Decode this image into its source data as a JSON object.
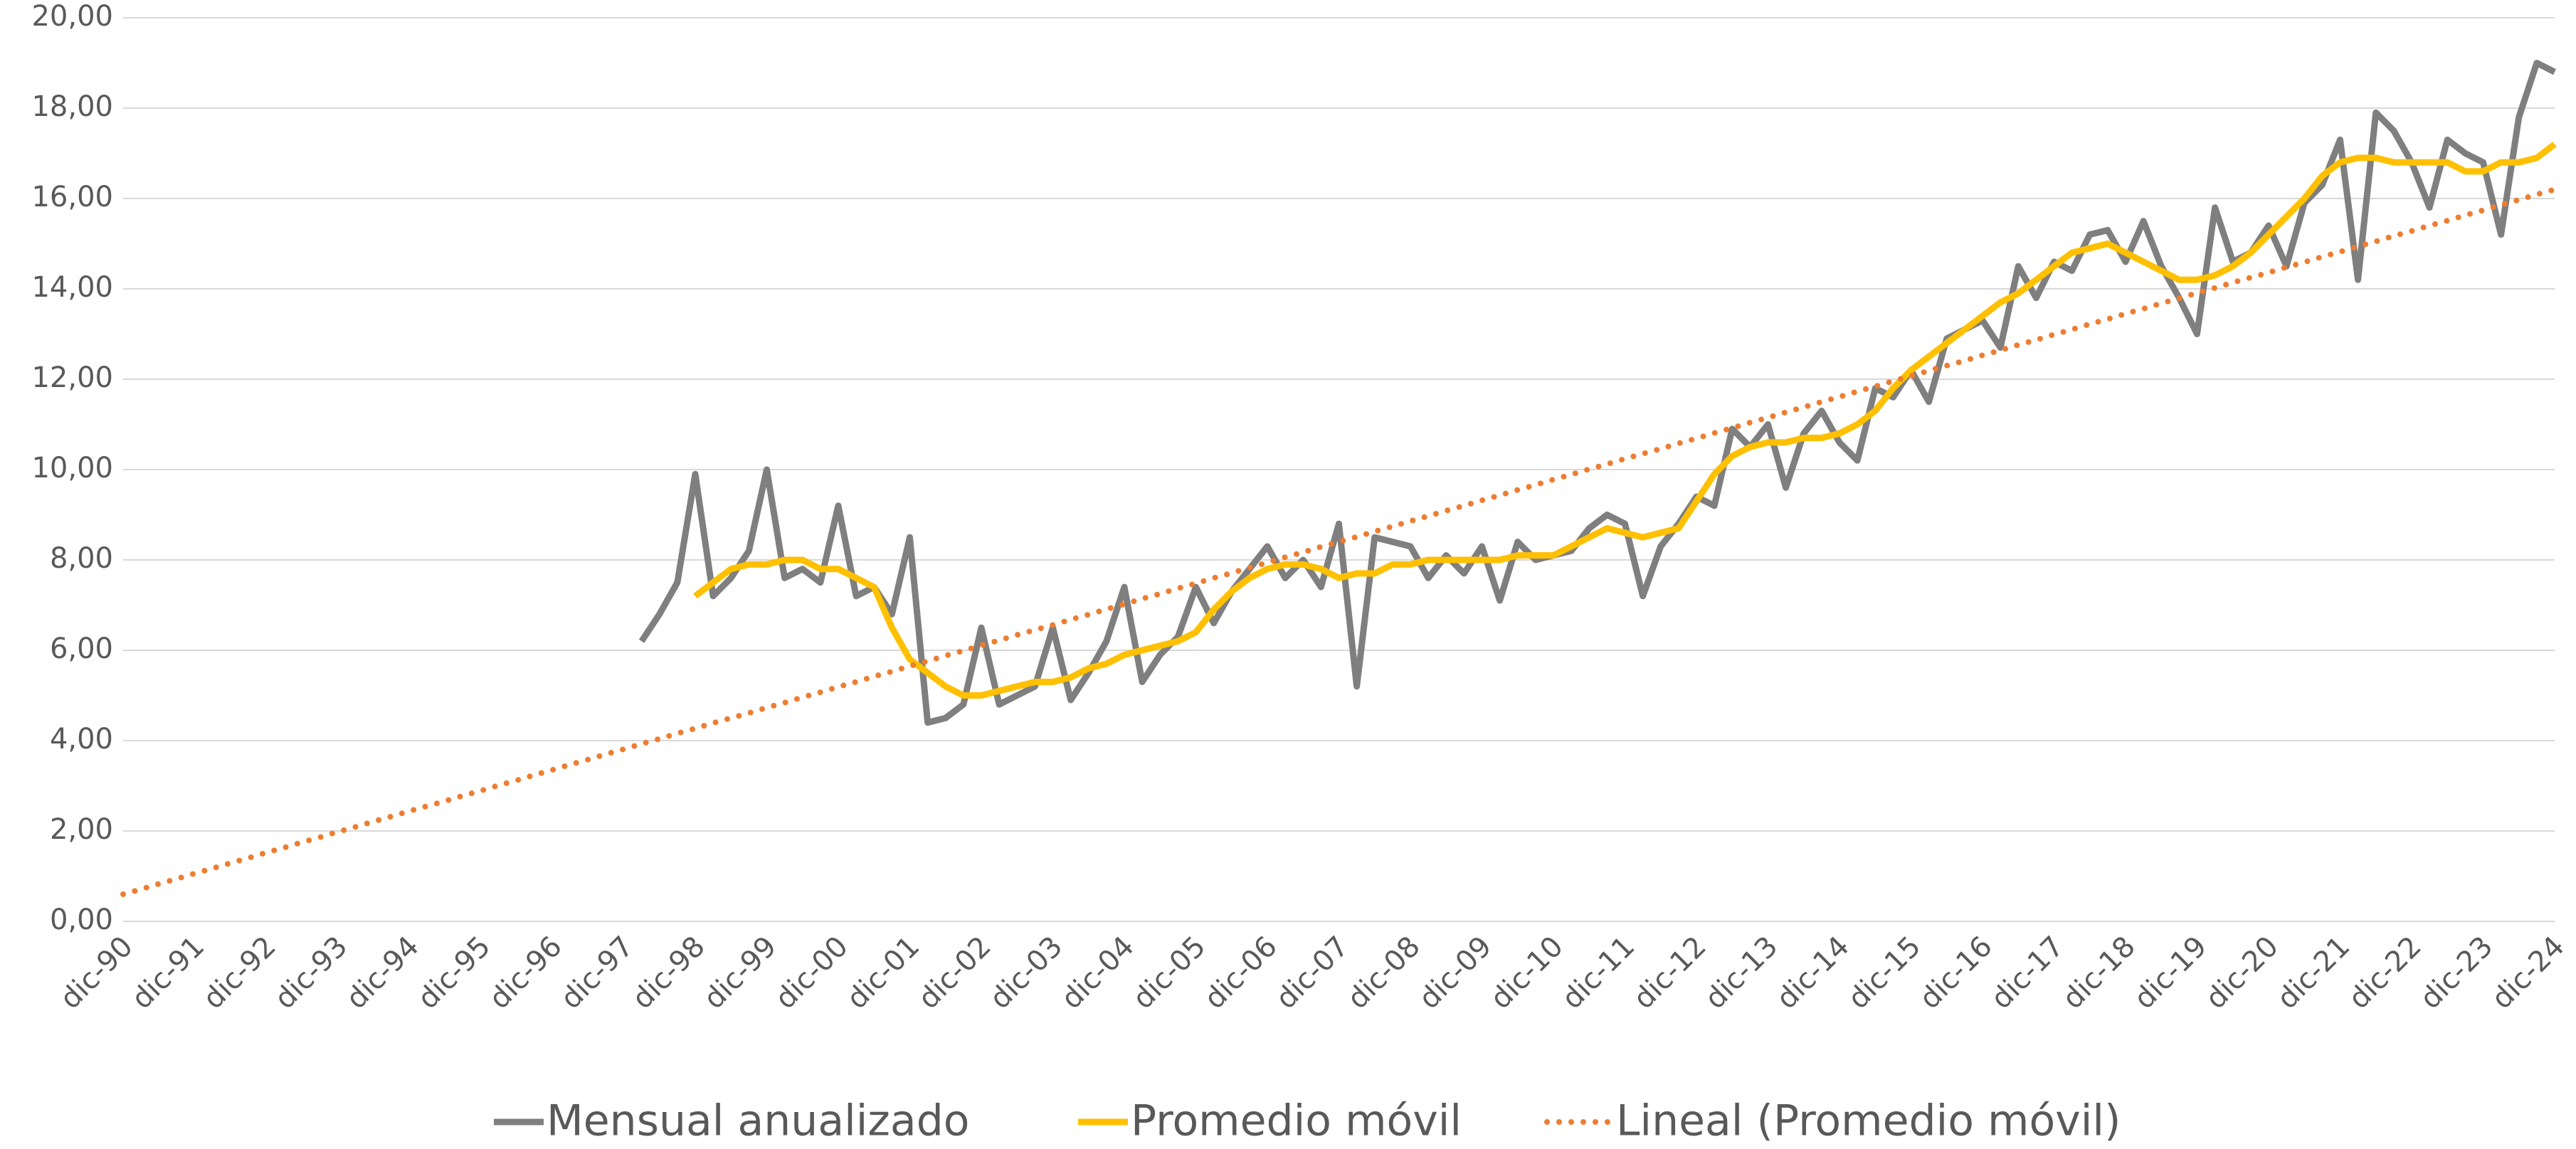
{
  "chart_data": {
    "type": "line",
    "categories": [
      "dic-90",
      null,
      null,
      null,
      "dic-91",
      null,
      null,
      null,
      "dic-92",
      null,
      null,
      null,
      "dic-93",
      null,
      null,
      null,
      "dic-94",
      null,
      null,
      null,
      "dic-95",
      null,
      null,
      null,
      "dic-96",
      null,
      null,
      null,
      "dic-97",
      null,
      null,
      null,
      "dic-98",
      null,
      null,
      null,
      "dic-99",
      null,
      null,
      null,
      "dic-00",
      null,
      null,
      null,
      "dic-01",
      null,
      null,
      null,
      "dic-02",
      null,
      null,
      null,
      "dic-03",
      null,
      null,
      null,
      "dic-04",
      null,
      null,
      null,
      "dic-05",
      null,
      null,
      null,
      "dic-06",
      null,
      null,
      null,
      "dic-07",
      null,
      null,
      null,
      "dic-08",
      null,
      null,
      null,
      "dic-09",
      null,
      null,
      null,
      "dic-10",
      null,
      null,
      null,
      "dic-11",
      null,
      null,
      null,
      "dic-12",
      null,
      null,
      null,
      "dic-13",
      null,
      null,
      null,
      "dic-14",
      null,
      null,
      null,
      "dic-15",
      null,
      null,
      null,
      "dic-16",
      null,
      null,
      null,
      "dic-17",
      null,
      null,
      null,
      "dic-18",
      null,
      null,
      null,
      "dic-19",
      null,
      null,
      null,
      "dic-20",
      null,
      null,
      null,
      "dic-21",
      null,
      null,
      null,
      "dic-22",
      null,
      null,
      null,
      "dic-23",
      null,
      null,
      null,
      "dic-24"
    ],
    "series": [
      {
        "name": "Mensual anualizado",
        "color": "#7f7f7f",
        "dash": "solid",
        "values": [
          null,
          null,
          null,
          null,
          null,
          null,
          null,
          null,
          null,
          null,
          null,
          null,
          null,
          null,
          null,
          null,
          null,
          null,
          null,
          null,
          null,
          null,
          null,
          null,
          null,
          null,
          null,
          null,
          null,
          6.2,
          6.8,
          7.5,
          9.9,
          7.2,
          7.6,
          8.2,
          10.0,
          7.6,
          7.8,
          7.5,
          9.2,
          7.2,
          7.4,
          6.8,
          8.5,
          4.4,
          4.5,
          4.8,
          6.5,
          4.8,
          5.0,
          5.2,
          6.5,
          4.9,
          5.5,
          6.2,
          7.4,
          5.3,
          5.9,
          6.3,
          7.4,
          6.6,
          7.3,
          7.8,
          8.3,
          7.6,
          8.0,
          7.4,
          8.8,
          5.2,
          8.5,
          8.4,
          8.3,
          7.6,
          8.1,
          7.7,
          8.3,
          7.1,
          8.4,
          8.0,
          8.1,
          8.2,
          8.7,
          9.0,
          8.8,
          7.2,
          8.3,
          8.8,
          9.4,
          9.2,
          10.9,
          10.5,
          11.0,
          9.6,
          10.8,
          11.3,
          10.6,
          10.2,
          11.8,
          11.6,
          12.2,
          11.5,
          12.9,
          13.1,
          13.3,
          12.7,
          14.5,
          13.8,
          14.6,
          14.4,
          15.2,
          15.3,
          14.6,
          15.5,
          14.5,
          13.8,
          13.0,
          15.8,
          14.6,
          14.8,
          15.4,
          14.5,
          15.9,
          16.3,
          17.3,
          14.2,
          17.9,
          17.5,
          16.8,
          15.8,
          17.3,
          17.0,
          16.8,
          15.2,
          17.8,
          19.0,
          18.8
        ]
      },
      {
        "name": "Promedio móvil",
        "color": "#ffc000",
        "dash": "solid",
        "values": [
          null,
          null,
          null,
          null,
          null,
          null,
          null,
          null,
          null,
          null,
          null,
          null,
          null,
          null,
          null,
          null,
          null,
          null,
          null,
          null,
          null,
          null,
          null,
          null,
          null,
          null,
          null,
          null,
          null,
          null,
          null,
          null,
          7.2,
          7.5,
          7.8,
          7.9,
          7.9,
          8.0,
          8.0,
          7.8,
          7.8,
          7.6,
          7.4,
          6.5,
          5.8,
          5.5,
          5.2,
          5.0,
          5.0,
          5.1,
          5.2,
          5.3,
          5.3,
          5.4,
          5.6,
          5.7,
          5.9,
          6.0,
          6.1,
          6.2,
          6.4,
          6.9,
          7.3,
          7.6,
          7.8,
          7.9,
          7.9,
          7.8,
          7.6,
          7.7,
          7.7,
          7.9,
          7.9,
          8.0,
          8.0,
          8.0,
          8.0,
          8.0,
          8.1,
          8.1,
          8.1,
          8.3,
          8.5,
          8.7,
          8.6,
          8.5,
          8.6,
          8.7,
          9.3,
          9.9,
          10.3,
          10.5,
          10.6,
          10.6,
          10.7,
          10.7,
          10.8,
          11.0,
          11.3,
          11.8,
          12.2,
          12.5,
          12.8,
          13.1,
          13.4,
          13.7,
          13.9,
          14.2,
          14.5,
          14.8,
          14.9,
          15.0,
          14.8,
          14.6,
          14.4,
          14.2,
          14.2,
          14.3,
          14.5,
          14.8,
          15.2,
          15.6,
          16.0,
          16.5,
          16.8,
          16.9,
          16.9,
          16.8,
          16.8,
          16.8,
          16.8,
          16.6,
          16.6,
          16.8,
          16.8,
          16.9,
          17.2
        ]
      },
      {
        "name": "Lineal (Promedio móvil)",
        "color": "#ed7d31",
        "dash": "dotted",
        "values": [
          0.6,
          0.71,
          0.83,
          0.94,
          1.06,
          1.17,
          1.29,
          1.4,
          1.52,
          1.63,
          1.75,
          1.86,
          1.98,
          2.09,
          2.21,
          2.32,
          2.44,
          2.55,
          2.66,
          2.78,
          2.89,
          3.01,
          3.12,
          3.24,
          3.35,
          3.47,
          3.58,
          3.7,
          3.81,
          3.93,
          4.04,
          4.16,
          4.27,
          4.39,
          4.5,
          4.61,
          4.73,
          4.84,
          4.96,
          5.07,
          5.19,
          5.3,
          5.42,
          5.53,
          5.65,
          5.76,
          5.88,
          5.99,
          6.11,
          6.22,
          6.34,
          6.45,
          6.56,
          6.68,
          6.79,
          6.91,
          7.02,
          7.14,
          7.25,
          7.37,
          7.48,
          7.6,
          7.71,
          7.83,
          7.94,
          8.06,
          8.17,
          8.29,
          8.4,
          8.51,
          8.63,
          8.74,
          8.86,
          8.97,
          9.09,
          9.2,
          9.32,
          9.43,
          9.55,
          9.66,
          9.78,
          9.89,
          10.01,
          10.12,
          10.24,
          10.35,
          10.46,
          10.58,
          10.69,
          10.81,
          10.92,
          11.04,
          11.15,
          11.27,
          11.38,
          11.5,
          11.61,
          11.73,
          11.84,
          11.96,
          12.07,
          12.19,
          12.3,
          12.41,
          12.53,
          12.64,
          12.76,
          12.87,
          12.99,
          13.1,
          13.22,
          13.33,
          13.45,
          13.56,
          13.68,
          13.79,
          13.91,
          14.02,
          14.14,
          14.25,
          14.36,
          14.48,
          14.59,
          14.71,
          14.82,
          14.94,
          15.05,
          15.17,
          15.28,
          15.4,
          15.51,
          15.63,
          15.74,
          15.86,
          15.97,
          16.09,
          16.2
        ]
      }
    ],
    "ylim": [
      0,
      20
    ],
    "yticks": [
      {
        "value": 0,
        "label": "0,00"
      },
      {
        "value": 2,
        "label": "2,00"
      },
      {
        "value": 4,
        "label": "4,00"
      },
      {
        "value": 6,
        "label": "6,00"
      },
      {
        "value": 8,
        "label": "8,00"
      },
      {
        "value": 10,
        "label": "10,00"
      },
      {
        "value": 12,
        "label": "12,00"
      },
      {
        "value": 14,
        "label": "14,00"
      },
      {
        "value": 16,
        "label": "16,00"
      },
      {
        "value": 18,
        "label": "18,00"
      },
      {
        "value": 20,
        "label": "20,00"
      }
    ],
    "grid": true,
    "legend": "bottom"
  }
}
